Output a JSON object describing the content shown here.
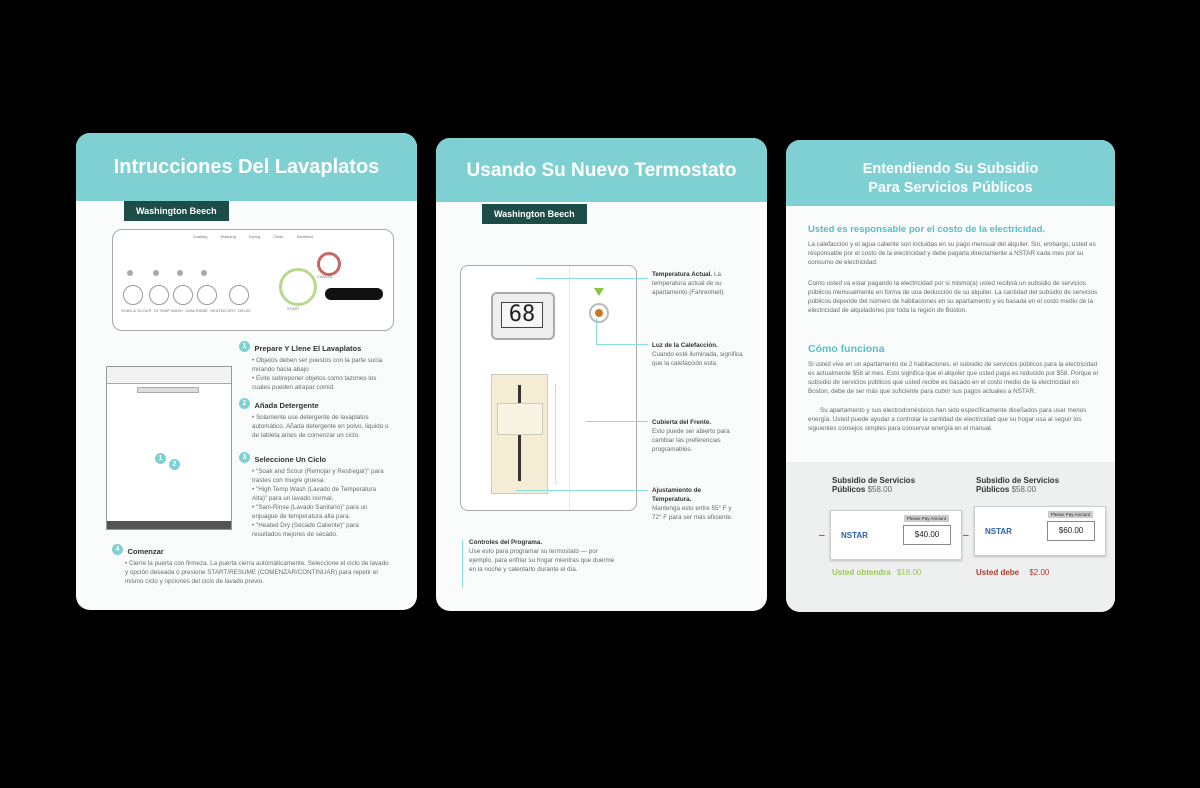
{
  "card1": {
    "title": "Intrucciones Del Lavaplatos",
    "tag": "Washington Beech",
    "panel_lights": [
      "Soaking",
      "Washing",
      "Drying",
      "Clean",
      "Sanitized"
    ],
    "panel_buttons": [
      "SOAK & SCOUR",
      "HI TEMP WASH",
      "SANI RINSE",
      "HEATED DRY"
    ],
    "delay": "DELAY",
    "start": "START",
    "cancel": "CANCEL",
    "step1_title": "Prepare Y Llene El Lavaplatos",
    "step1_body": "• Objetos deben ser puestos con la parte sucia mirando hacia abajo\n• Evite sobreponer objetos como tazones los cuales pueden atrapar comid.",
    "step2_title": "Añada Detergente",
    "step2_body": "• Solamente use detergente de lavaplatos automático. Añada detergente en polvo, liquido o de tableta antes de comenzar un ciclo.",
    "step3_title": "Seleccione Un Ciclo",
    "step3_body": "• \"Soak and Scour (Remojar y Restregar)\" para trastes con mugre gruesa.\n• \"High Temp Wash (Lavado de Temperatura Alta)\" para un lavado normal.\n• \"Sani-Rinse (Lavado Sanitario)\" para un enjuague de temperatura alta para.\n• \"Heated Dry (Secado Caliente)\" para resultados mejores de secado.",
    "step4_title": "Comenzar",
    "step4_body": "• Cierre la puerta con firmeza. La puerta cierra automáticamente. Seleccione el ciclo de lavado y opción deseada o presione START/RESUME (COMENZAR/CONTINUAR) para repetir el mismo ciclo y opciones del ciclo de lavado previo."
  },
  "card2": {
    "title": "Usando Su Nuevo Termostato",
    "tag": "Washington Beech",
    "display": "68",
    "l1_title": "Temperatura Actual.",
    "l1_body": "La temperatura actual de su apartamento (Fahrenheit).",
    "l2_title": "Luz de la Calefacción.",
    "l2_body": "Cuando esté iluminada, significa que la calefacción esta.",
    "l3_title": "Cubierta del Frente.",
    "l3_body": "Esto puede ser abierto para cambiar las preferencias programables.",
    "l4_title": "Ajustamiento de Temperatura.",
    "l4_body": "Mantenga esto entre 55° F y 72° F para ser más eficiente.",
    "l5_title": "Controles del Programa.",
    "l5_body": "Use esto para programar su termostato — por ejemplo, para enfriar su hogar mientras que duerme en la noche y calentarlo durante el día."
  },
  "card3": {
    "title1": "Entendiendo Su Subsidio",
    "title2": "Para Servicios Públicos",
    "h1": "Usted es responsable por el costo de la electricidad.",
    "p1": "La calefacción y el agua caliente son incluidas en su pago mensual del alquiler. Sin, embargo, usted es responsable por el costo de la electricidad y debe pagarla directamente a NSTAR cada mes por su consumo de electricidad.",
    "p2": "Como usted va estar pagando la electricidad por si mismo(a) usted recibirá un subsidio de servicios públicos mensualmente en forma de una deducción de su alquiler. La cantidad del subsidio de servicios públicos depende del número de habitaciones en su apartamento y es basada en el costo medio de la electricidad de alquiladores por toda la región de Boston.",
    "h2": "Cómo funciona",
    "p3": "Si usted vive en un apartamento de 2 habitaciones, el subsidio de servicios públicos para la electricidad es actualmente $58 al mes. Esto significa que el alquiler que usted paga es reducido por $58. Porque el subsidio de servicios públicos que usted recibe es basado en el costo medio de la electricidad en Boston, debe de ser más que suficiente para cubrir sus pagos actuales a NSTAR.",
    "p4": "Su apartamento y sus electrodomésticos han sido específicamente diseñados para usar menos energía. Usted puede ayudar a controlar la cantidad de electricidad que su hogar usa al seguir los siguientes consejos simples para conservar energía en el manual.",
    "sub_label": "Subsidio de Servicios Públicos",
    "sub_amt": "$58.00",
    "bill_header": "Please Pay Amount",
    "logo": "NSTAR",
    "bill1": "$40.00",
    "bill2": "$60.00",
    "res1_label": "Usted obtendra",
    "res1_amt": "$18.00",
    "res2_label": "Usted debe",
    "res2_amt": "$2.00",
    "colors": {
      "green": "#9bc45a",
      "red": "#b03a32"
    }
  }
}
